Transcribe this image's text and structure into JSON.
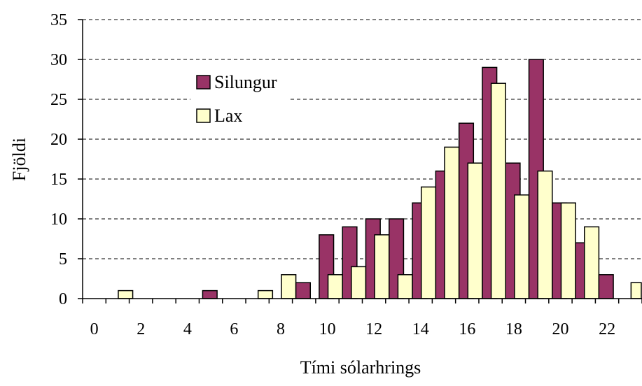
{
  "chart_data": {
    "type": "bar",
    "title": "",
    "xlabel": "Tími sólarhrings",
    "ylabel": "Fjöldi",
    "x": [
      0,
      1,
      2,
      3,
      4,
      5,
      6,
      7,
      8,
      9,
      10,
      11,
      12,
      13,
      14,
      15,
      16,
      17,
      18,
      19,
      20,
      21,
      22,
      23
    ],
    "xticks": [
      0,
      2,
      4,
      6,
      8,
      10,
      12,
      14,
      16,
      18,
      20,
      22
    ],
    "ylim": [
      0,
      35
    ],
    "yticks": [
      0,
      5,
      10,
      15,
      20,
      25,
      30,
      35
    ],
    "grid": "horizontal-dashed",
    "legend_position": "top-left",
    "series": [
      {
        "name": "Silungur",
        "color": "#993366",
        "values": [
          0,
          0,
          0,
          0,
          0,
          1,
          0,
          0,
          0,
          2,
          8,
          9,
          10,
          10,
          12,
          16,
          22,
          29,
          17,
          30,
          12,
          7,
          3,
          0
        ]
      },
      {
        "name": "Lax",
        "color": "#FFFFCC",
        "values": [
          0,
          1,
          0,
          0,
          0,
          0,
          0,
          1,
          3,
          0,
          3,
          4,
          8,
          3,
          14,
          19,
          17,
          27,
          13,
          16,
          12,
          9,
          0,
          2
        ]
      }
    ]
  }
}
